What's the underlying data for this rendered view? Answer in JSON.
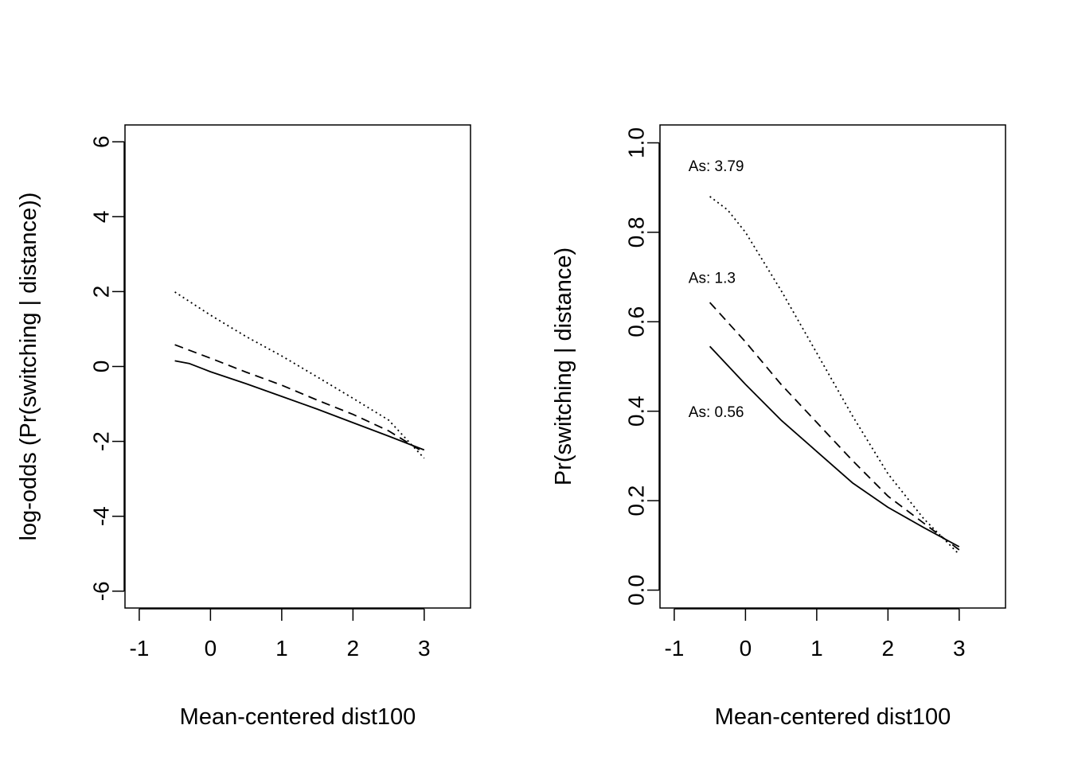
{
  "chart_data": [
    {
      "type": "line",
      "xlabel": "Mean-centered dist100",
      "ylabel": "log-odds (Pr(switching | distance))",
      "xlim": [
        -1.2,
        3.65
      ],
      "ylim": [
        -6.45,
        6.45
      ],
      "xticks": [
        -1,
        0,
        1,
        2,
        3
      ],
      "xtick_labels": [
        "-1",
        "0",
        "1",
        "2",
        "3"
      ],
      "yticks": [
        -6,
        -4,
        -2,
        0,
        2,
        4,
        6
      ],
      "ytick_labels": [
        "-6",
        "-4",
        "-2",
        "0",
        "2",
        "4",
        "6"
      ],
      "grid": false,
      "legend": "none",
      "series": [
        {
          "name": "As: 0.56",
          "style": "solid",
          "x": [
            -0.5,
            -0.3,
            0,
            0.5,
            1,
            1.5,
            2,
            2.5,
            3
          ],
          "y": [
            0.15,
            0.08,
            -0.14,
            -0.46,
            -0.8,
            -1.14,
            -1.5,
            -1.86,
            -2.23
          ]
        },
        {
          "name": "As: 1.3",
          "style": "dashed",
          "x": [
            -0.5,
            0,
            0.5,
            1,
            1.5,
            2,
            2.5,
            3
          ],
          "y": [
            0.58,
            0.22,
            -0.15,
            -0.5,
            -0.9,
            -1.28,
            -1.72,
            -2.3
          ]
        },
        {
          "name": "As: 3.79",
          "style": "dotted",
          "x": [
            -0.5,
            0,
            0.5,
            1,
            1.5,
            2,
            2.5,
            3
          ],
          "y": [
            1.99,
            1.37,
            0.8,
            0.28,
            -0.28,
            -0.85,
            -1.43,
            -2.45
          ]
        }
      ]
    },
    {
      "type": "line",
      "xlabel": "Mean-centered dist100",
      "ylabel": "Pr(switching | distance)",
      "xlim": [
        -1.2,
        3.65
      ],
      "ylim": [
        -0.04,
        1.04
      ],
      "xticks": [
        -1,
        0,
        1,
        2,
        3
      ],
      "xtick_labels": [
        "-1",
        "0",
        "1",
        "2",
        "3"
      ],
      "yticks": [
        0,
        0.2,
        0.4,
        0.6,
        0.8,
        1
      ],
      "ytick_labels": [
        "0.0",
        "0.2",
        "0.4",
        "0.6",
        "0.8",
        "1.0"
      ],
      "grid": false,
      "legend": "none",
      "annotations": [
        {
          "text": "As: 3.79",
          "x": -0.8,
          "y": 0.947
        },
        {
          "text": "As: 1.3",
          "x": -0.8,
          "y": 0.697
        },
        {
          "text": "As: 0.56",
          "x": -0.8,
          "y": 0.397
        }
      ],
      "series": [
        {
          "name": "As: 0.56",
          "style": "solid",
          "x": [
            -0.5,
            0,
            0.5,
            1,
            1.5,
            2,
            2.5,
            3
          ],
          "y": [
            0.545,
            0.46,
            0.38,
            0.31,
            0.24,
            0.185,
            0.14,
            0.097
          ]
        },
        {
          "name": "As: 1.3",
          "style": "dashed",
          "x": [
            -0.5,
            0,
            0.5,
            1,
            1.5,
            2,
            2.5,
            3
          ],
          "y": [
            0.643,
            0.555,
            0.46,
            0.375,
            0.29,
            0.21,
            0.15,
            0.09
          ]
        },
        {
          "name": "As: 3.79",
          "style": "dotted",
          "x": [
            -0.5,
            -0.25,
            0,
            0.5,
            1,
            1.5,
            2,
            2.5,
            3
          ],
          "y": [
            0.88,
            0.85,
            0.8,
            0.67,
            0.53,
            0.39,
            0.26,
            0.16,
            0.08
          ]
        }
      ]
    }
  ]
}
